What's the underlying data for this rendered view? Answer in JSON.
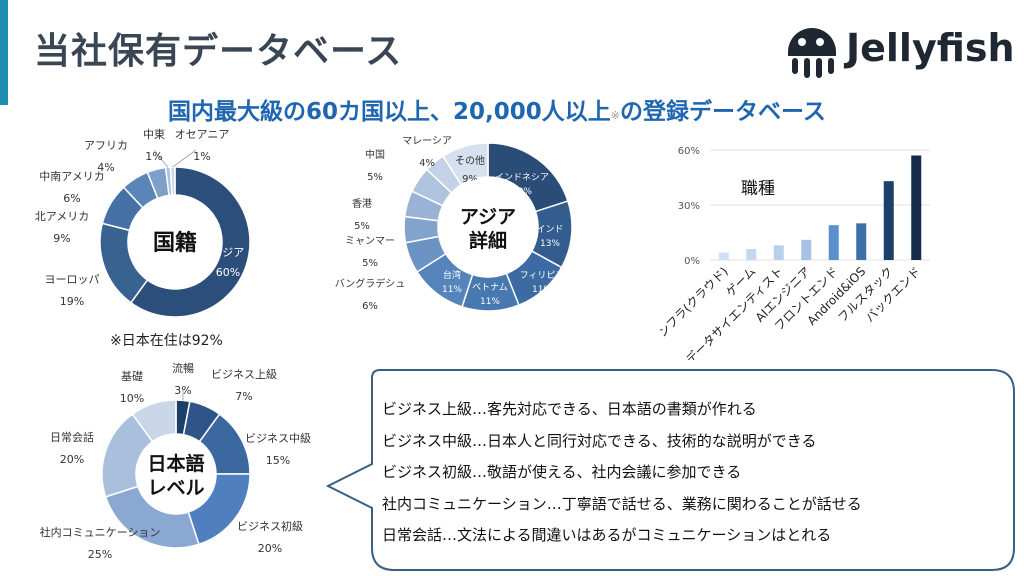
{
  "header": {
    "title": "当社保有データベース",
    "subtitle": "国内最大級の60カ国以上、20,000人以上",
    "subtitle_note": "※",
    "subtitle_tail": "の登録データベース",
    "logo_text": "Jellyfish",
    "brand_color": "#1e8fb0"
  },
  "chart_data": [
    {
      "type": "pie",
      "variant": "donut",
      "center_label": "国籍",
      "categories": [
        "アジア",
        "ヨーロッパ",
        "北アメリカ",
        "中南アメリカ",
        "アフリカ",
        "中東",
        "オセアニア"
      ],
      "values": [
        60,
        19,
        9,
        6,
        4,
        1,
        1
      ],
      "value_labels": [
        "60%",
        "19%",
        "9%",
        "6%",
        "4%",
        "1%",
        "1%"
      ],
      "colors": [
        "#2b4f7a",
        "#38628f",
        "#4571a4",
        "#5a85b8",
        "#7e9fca",
        "#a9bfdc",
        "#cdd9ea"
      ],
      "note": "※日本在住は92%"
    },
    {
      "type": "pie",
      "variant": "donut",
      "center_label_lines": [
        "アジア",
        "詳細"
      ],
      "categories": [
        "インドネシア",
        "インド",
        "フィリピン",
        "ベトナム",
        "台湾",
        "バングラデシュ",
        "ミャンマー",
        "香港",
        "中国",
        "マレーシア",
        "その他"
      ],
      "values": [
        20,
        13,
        11,
        11,
        11,
        6,
        5,
        5,
        5,
        4,
        9
      ],
      "value_labels": [
        "20%",
        "13%",
        "11%",
        "11%",
        "11%",
        "6%",
        "5%",
        "5%",
        "5%",
        "4%",
        "9%"
      ],
      "colors": [
        "#2a4d78",
        "#335d8e",
        "#3b6ba2",
        "#4778b0",
        "#5484bb",
        "#6b93c4",
        "#82a3cc",
        "#98b3d5",
        "#aec3de",
        "#c3d2e6",
        "#d6e0ee"
      ]
    },
    {
      "type": "bar",
      "inner_label": "職種",
      "categories": [
        "インフラ(クラウド)",
        "ゲーム",
        "データサイエンティスト",
        "AIエンジニア",
        "フロントエンド",
        "Android&iOS",
        "フルスタック",
        "バックエンド"
      ],
      "values": [
        4,
        6,
        8,
        11,
        19,
        20,
        43,
        57
      ],
      "yticks": [
        "0%",
        "30%",
        "60%"
      ],
      "ylim": [
        0,
        60
      ],
      "colors": [
        "#cfe0f3",
        "#c5d8ef",
        "#bad0ea",
        "#a7c2e2",
        "#5b90d0",
        "#3f6fa8",
        "#1f3f6b",
        "#142b4a"
      ]
    },
    {
      "type": "pie",
      "variant": "donut",
      "center_label_lines": [
        "日本語",
        "レベル"
      ],
      "categories": [
        "流暢",
        "ビジネス上級",
        "ビジネス中級",
        "ビジネス初級",
        "社内コミュニケーション",
        "日常会話",
        "基礎"
      ],
      "values": [
        3,
        7,
        15,
        20,
        25,
        20,
        10
      ],
      "value_labels": [
        "3%",
        "7%",
        "15%",
        "20%",
        "25%",
        "20%",
        "10%"
      ],
      "colors": [
        "#1f3f6b",
        "#2f5588",
        "#3c68a0",
        "#4f7fbf",
        "#8aa8d2",
        "#a9bfdc",
        "#c9d6e8"
      ]
    }
  ],
  "level_descriptions": [
    "ビジネス上級…客先対応できる、日本語の書類が作れる",
    "ビジネス中級…日本人と同行対応できる、技術的な説明ができる",
    "ビジネス初級…敬語が使える、社内会議に参加できる",
    "社内コミュニケーション…丁寧語で話せる、業務に関わることが話せる",
    "日常会話…文法による間違いはあるがコミュニケーションはとれる"
  ]
}
